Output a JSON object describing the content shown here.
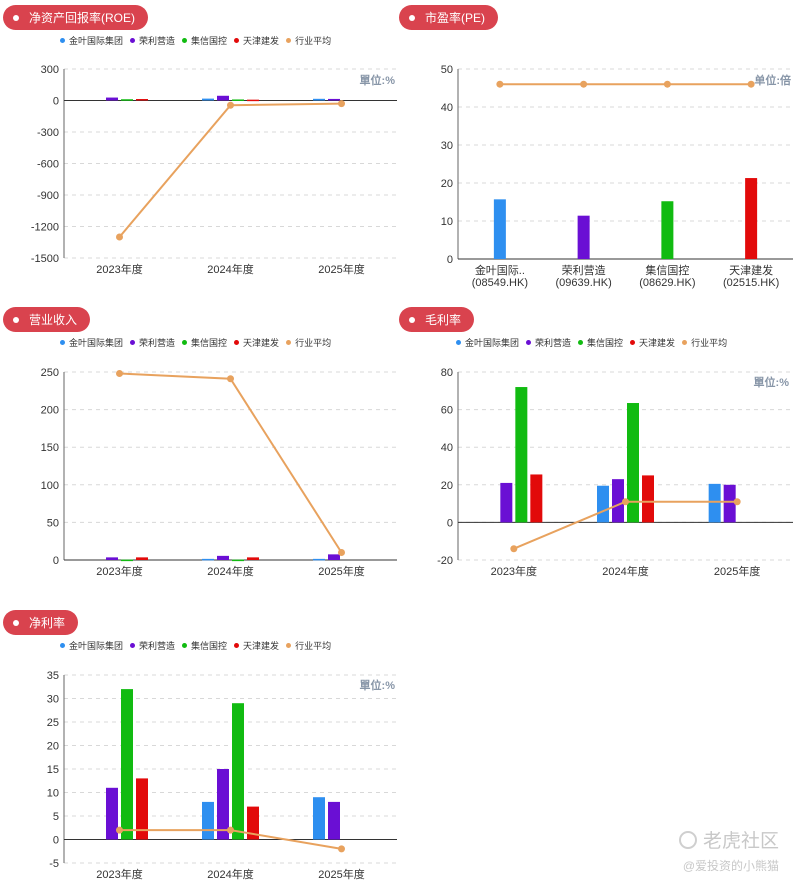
{
  "legend": [
    {
      "name": "金叶国际集团",
      "color": "#2e8ff0"
    },
    {
      "name": "荣利营造",
      "color": "#6a0fd4"
    },
    {
      "name": "集信国控",
      "color": "#11bb11"
    },
    {
      "name": "天津建发",
      "color": "#e20a0a"
    },
    {
      "name": "行业平均",
      "color": "#e8a25e"
    }
  ],
  "watermark": {
    "logo": "老虎社区",
    "sub": "@爱投资的小熊猫"
  },
  "chart_data": [
    {
      "type": "bar",
      "title": "净资产回报率(ROE)",
      "unit": "單位:%",
      "categories": [
        "2023年度",
        "2024年度",
        "2025年度"
      ],
      "ylim": [
        -1500,
        300
      ],
      "yticks": [
        300,
        0,
        -300,
        -600,
        -900,
        -1200,
        -1500
      ],
      "series": [
        {
          "name": "金叶国际集团",
          "values": [
            null,
            18,
            16
          ]
        },
        {
          "name": "荣利营造",
          "values": [
            28,
            45,
            15
          ]
        },
        {
          "name": "集信国控",
          "values": [
            12,
            10,
            null
          ]
        },
        {
          "name": "天津建发",
          "values": [
            14,
            8,
            null
          ]
        }
      ],
      "line": {
        "name": "行业平均",
        "values": [
          -1300,
          -45,
          -30
        ]
      }
    },
    {
      "type": "bar",
      "title": "市盈率(PE)",
      "unit": "单位:倍",
      "categories": [
        "金叶国际..",
        "荣利营造",
        "集信国控",
        "天津建发"
      ],
      "categories_sub": [
        "(08549.HK)",
        "(09639.HK)",
        "(08629.HK)",
        "(02515.HK)"
      ],
      "ylim": [
        0,
        50
      ],
      "yticks": [
        50,
        40,
        30,
        20,
        10,
        0
      ],
      "values": [
        15.7,
        11.4,
        15.2,
        21.3
      ],
      "colors": [
        "#2e8ff0",
        "#6a0fd4",
        "#11bb11",
        "#e20a0a"
      ],
      "line": {
        "name": "行业平均",
        "values": [
          46,
          46,
          46,
          46
        ]
      }
    },
    {
      "type": "bar",
      "title": "营业收入",
      "unit": "",
      "categories": [
        "2023年度",
        "2024年度",
        "2025年度"
      ],
      "ylim": [
        0,
        250
      ],
      "yticks": [
        250,
        200,
        150,
        100,
        50,
        0
      ],
      "series": [
        {
          "name": "金叶国际集团",
          "values": [
            null,
            1.5,
            1.5
          ]
        },
        {
          "name": "荣利营造",
          "values": [
            3.5,
            5.5,
            7.5
          ]
        },
        {
          "name": "集信国控",
          "values": [
            0.5,
            0.5,
            null
          ]
        },
        {
          "name": "天津建发",
          "values": [
            3.5,
            3.5,
            null
          ]
        }
      ],
      "line": {
        "name": "行业平均",
        "values": [
          248,
          241,
          10
        ]
      }
    },
    {
      "type": "bar",
      "title": "毛利率",
      "unit": "單位:%",
      "categories": [
        "2023年度",
        "2024年度",
        "2025年度"
      ],
      "ylim": [
        -20,
        80
      ],
      "yticks": [
        80,
        60,
        40,
        20,
        0,
        -20
      ],
      "series": [
        {
          "name": "金叶国际集团",
          "values": [
            null,
            19.5,
            20.5
          ]
        },
        {
          "name": "荣利营造",
          "values": [
            21,
            23,
            20
          ]
        },
        {
          "name": "集信国控",
          "values": [
            72,
            63.5,
            null
          ]
        },
        {
          "name": "天津建发",
          "values": [
            25.5,
            25,
            null
          ]
        }
      ],
      "line": {
        "name": "行业平均",
        "values": [
          -14,
          11,
          11
        ]
      }
    },
    {
      "type": "bar",
      "title": "净利率",
      "unit": "單位:%",
      "categories": [
        "2023年度",
        "2024年度",
        "2025年度"
      ],
      "ylim": [
        -5,
        35
      ],
      "yticks": [
        35,
        30,
        25,
        20,
        15,
        10,
        5,
        0,
        -5
      ],
      "series": [
        {
          "name": "金叶国际集团",
          "values": [
            null,
            8,
            9
          ]
        },
        {
          "name": "荣利营造",
          "values": [
            11,
            15,
            8
          ]
        },
        {
          "name": "集信国控",
          "values": [
            32,
            29,
            null
          ]
        },
        {
          "name": "天津建发",
          "values": [
            13,
            7,
            null
          ]
        }
      ],
      "line": {
        "name": "行业平均",
        "values": [
          2,
          2,
          -2
        ]
      }
    }
  ]
}
